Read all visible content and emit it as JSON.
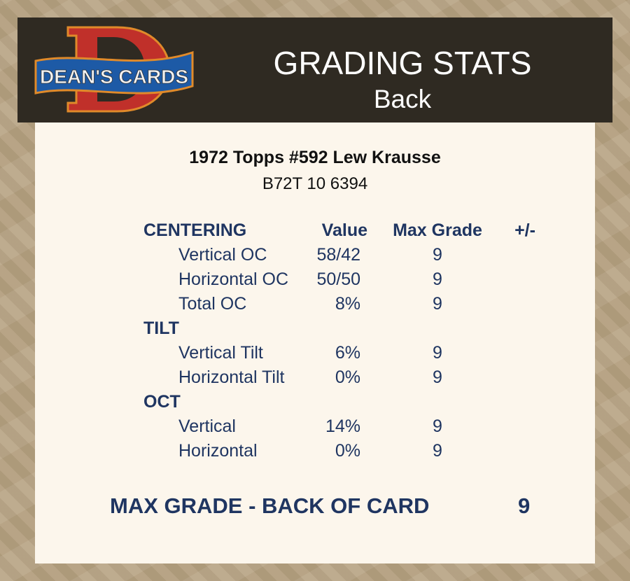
{
  "header": {
    "logo_text": "DEAN'S CARDS",
    "title": "GRADING STATS",
    "subtitle": "Back"
  },
  "card": {
    "title": "1972 Topps #592 Lew Krausse",
    "code": "B72T 10 6394"
  },
  "columns": {
    "value": "Value",
    "max_grade": "Max Grade",
    "plus_minus": "+/-"
  },
  "sections": [
    {
      "label": "CENTERING",
      "items": [
        {
          "label": "Vertical OC",
          "value": "58/42",
          "max_grade": "9"
        },
        {
          "label": "Horizontal OC",
          "value": "50/50",
          "max_grade": "9"
        },
        {
          "label": "Total OC",
          "value": "8%",
          "max_grade": "9"
        }
      ]
    },
    {
      "label": "TILT",
      "items": [
        {
          "label": "Vertical Tilt",
          "value": "6%",
          "max_grade": "9"
        },
        {
          "label": "Horizontal Tilt",
          "value": "0%",
          "max_grade": "9"
        }
      ]
    },
    {
      "label": "OCT",
      "items": [
        {
          "label": "Vertical",
          "value": "14%",
          "max_grade": "9"
        },
        {
          "label": "Horizontal",
          "value": "0%",
          "max_grade": "9"
        }
      ]
    }
  ],
  "footer": {
    "label": "MAX GRADE - BACK OF CARD",
    "value": "9"
  },
  "colors": {
    "header_bg": "#2f2a22",
    "panel_bg": "#fcf6ec",
    "text_navy": "#1f3561",
    "logo_red": "#c0302a",
    "logo_blue": "#1d5aa6"
  }
}
